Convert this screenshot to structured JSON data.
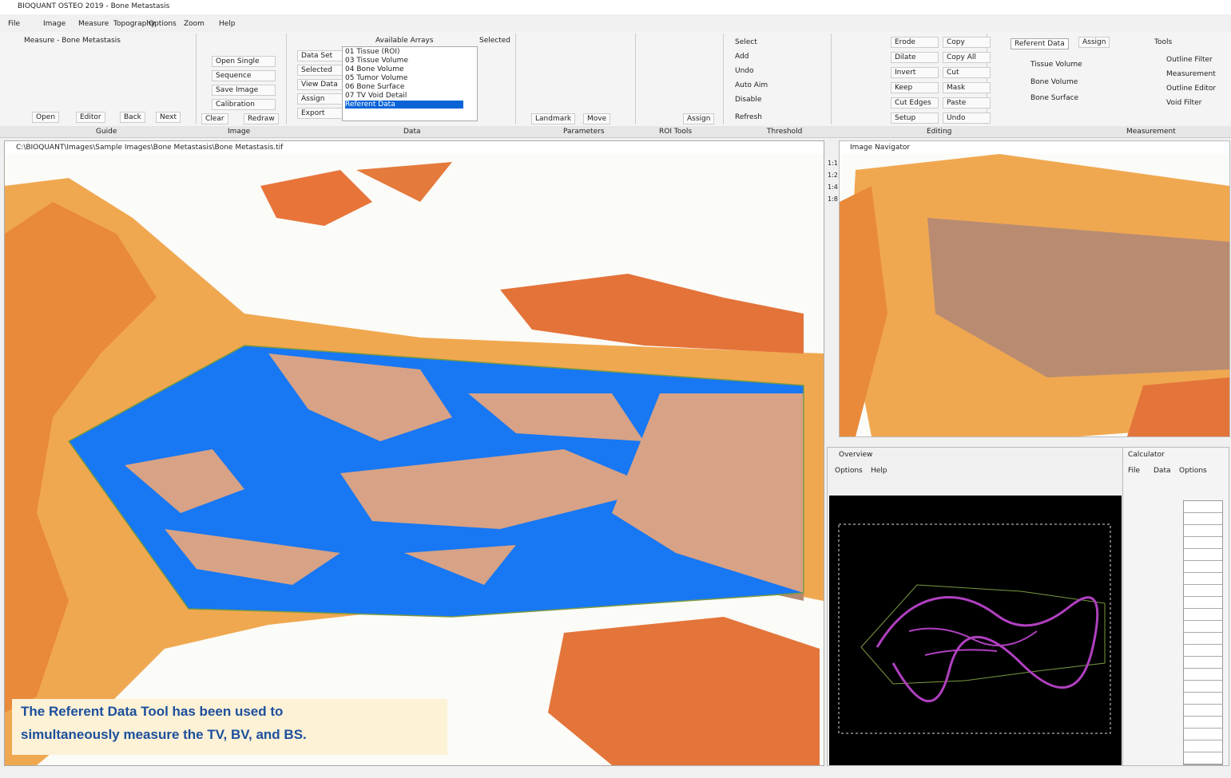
{
  "window_title": "BIOQUANT OSTEO 2019 - Bone Metastasis",
  "menu": [
    "File",
    "Image",
    "Measure",
    "Topography",
    "Options",
    "Zoom",
    "Help"
  ],
  "ribbon": {
    "groups": [
      "Guide",
      "Image",
      "Data",
      "Parameters",
      "ROI Tools",
      "Threshold",
      "Editing",
      "Measurement"
    ],
    "guide": {
      "title": "Measure - Bone Metastasis",
      "buttons": [
        "Open",
        "Editor",
        "Back",
        "Next"
      ]
    },
    "image": {
      "buttons": [
        "Open Single",
        "Sequence",
        "Save Image",
        "Calibration",
        "Clear",
        "Redraw"
      ]
    },
    "data": {
      "buttons": [
        "Data Set",
        "Selected",
        "View Data",
        "Assign",
        "Export"
      ],
      "list_title": "Available Arrays",
      "selected_title": "Selected",
      "list": [
        "01 Tissue (ROI)",
        "03 Tissue Volume",
        "04 Bone Volume",
        "05 Tumor Volume",
        "06 Bone Surface",
        "07 TV Void Detail",
        "Referent Data"
      ]
    },
    "parameters": {
      "buttons": [
        "Landmark",
        "Move",
        "Assign"
      ]
    },
    "threshold": {
      "buttons": [
        "Select",
        "Add",
        "Undo",
        "Auto Aim",
        "Disable",
        "Refresh"
      ]
    },
    "editing": {
      "buttons": [
        "Erode",
        "Dilate",
        "Invert",
        "Keep",
        "Cut Edges",
        "Setup",
        "Copy",
        "Copy All",
        "Cut",
        "Mask",
        "Paste",
        "Undo"
      ]
    },
    "measurement": {
      "type": "Referent Data",
      "assign": "Assign",
      "rows": [
        "Tissue Volume",
        "Bone Volume",
        "Bone Surface"
      ],
      "tools_title": "Tools",
      "tools": [
        "Outline Filter",
        "Measurement",
        "Outline Editor",
        "Void Filter"
      ]
    }
  },
  "image_window": {
    "title": "C:\\BIOQUANT\\Images\\Sample Images\\Bone Metastasis\\Bone Metastasis.tif"
  },
  "navigator": {
    "title": "Image Navigator",
    "zoom": [
      "1:1",
      "1:2",
      "1:4",
      "1:8"
    ]
  },
  "overview": {
    "title": "Overview",
    "menu": [
      "Options",
      "Help"
    ]
  },
  "calculator": {
    "title": "Calculator",
    "menu": [
      "File",
      "Data",
      "Options"
    ]
  },
  "caption": {
    "lines": [
      "The Referent Data Tool has been used to",
      "simultaneously measure the TV, BV, and BS."
    ]
  }
}
